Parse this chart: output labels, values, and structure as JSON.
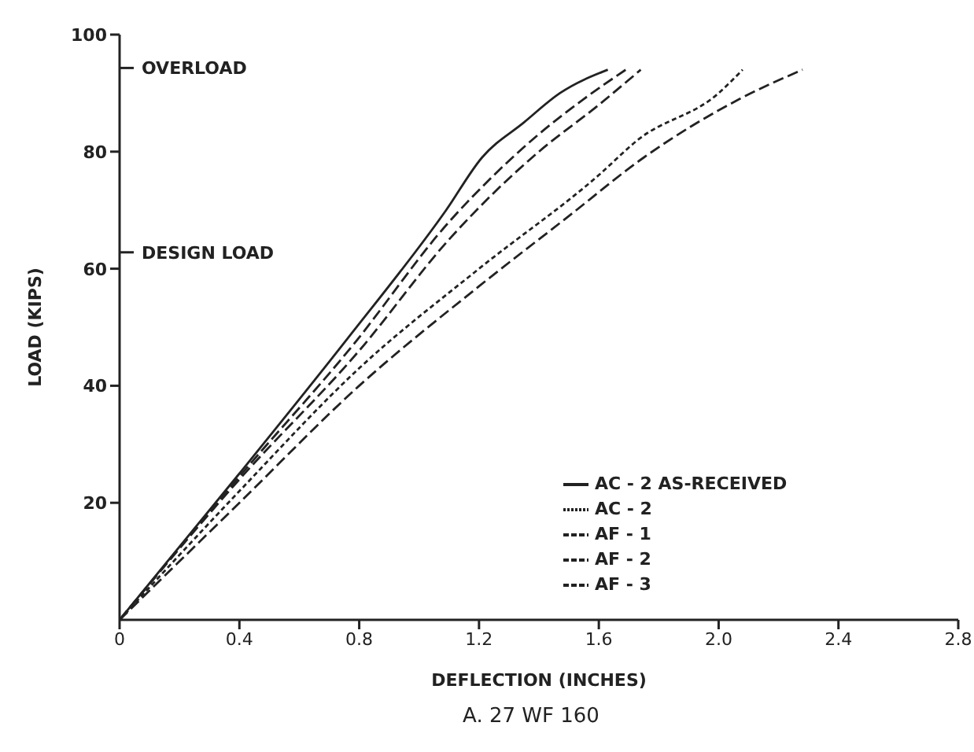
{
  "chart_data": {
    "type": "line",
    "title": "A.  27 WF 160",
    "xlabel": "DEFLECTION    (INCHES)",
    "ylabel": "LOAD    (KIPS)",
    "xlim": [
      0,
      2.8
    ],
    "xticks": [
      0,
      0.4,
      0.8,
      1.2,
      1.6,
      {
        "value": 2,
        "label": "2.0"
      },
      2.4,
      2.8
    ],
    "ylim": [
      0,
      100
    ],
    "yticks": [
      20,
      40,
      60,
      80,
      100
    ],
    "ref_lines": [
      {
        "axis": "y",
        "value": 62.8,
        "label": "DESIGN LOAD"
      },
      {
        "axis": "y",
        "value": 94.3,
        "label": "OVERLOAD"
      }
    ],
    "legend": "bottom right",
    "marker": "none",
    "series": [
      {
        "name": "AC - 2  AS-RECEIVED",
        "color": "#222222",
        "line_style": "solid",
        "x": [
          0,
          0.4,
          0.76,
          1.09,
          1.21,
          1.35,
          1.47,
          1.63
        ],
        "values": [
          0,
          25,
          48,
          70,
          79,
          85,
          90,
          94
        ]
      },
      {
        "name": "AC - 2",
        "color": "#222222",
        "line_style": "dotted",
        "x": [
          0,
          0.4,
          0.8,
          1.2,
          1.6,
          1.73,
          2.0,
          2.08
        ],
        "values": [
          0,
          22,
          43,
          60,
          76,
          82,
          90,
          94
        ]
      },
      {
        "name": "AF - 1",
        "color": "#222222",
        "line_style": "dashed",
        "x": [
          0,
          0.4,
          0.8,
          1.1,
          1.25,
          1.4,
          1.6,
          1.74
        ],
        "values": [
          0,
          24,
          46,
          65,
          73,
          80,
          88,
          94
        ]
      },
      {
        "name": "AF - 2",
        "color": "#222222",
        "line_style": "dashed",
        "x": [
          0,
          0.4,
          0.78,
          1.1,
          1.25,
          1.4,
          1.55,
          1.69
        ],
        "values": [
          0,
          24.5,
          47,
          68,
          76,
          83,
          89,
          94
        ]
      },
      {
        "name": "AF - 3",
        "color": "#222222",
        "line_style": "dashed",
        "x": [
          0,
          0.4,
          0.8,
          1.2,
          1.5,
          1.75,
          2.07,
          2.28
        ],
        "values": [
          0,
          20,
          40,
          57,
          69,
          79,
          89,
          94
        ]
      }
    ]
  }
}
